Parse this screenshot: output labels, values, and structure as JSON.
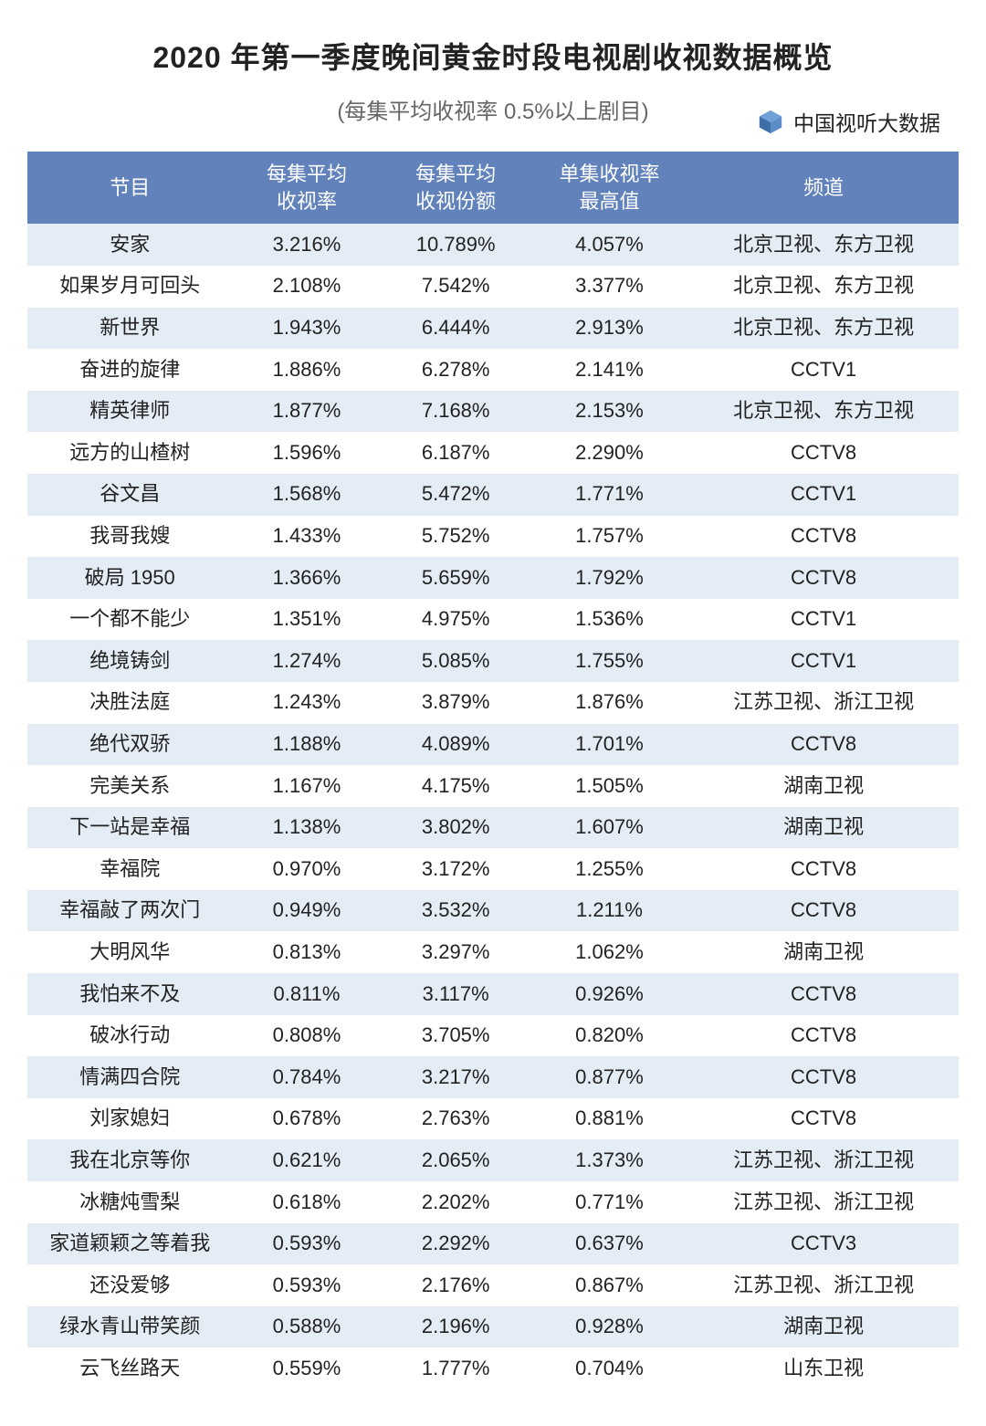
{
  "title": "2020 年第一季度晚间黄金时段电视剧收视数据概览",
  "subtitle": "(每集平均收视率 0.5%以上剧目)",
  "brand": {
    "label": "中国视听大数据",
    "icon_color": "#4a7fc1"
  },
  "table": {
    "type": "table",
    "header_bg": "#6182bb",
    "header_text_color": "#ffffff",
    "row_odd_bg": "#e4ecf5",
    "row_even_bg": "#ffffff",
    "text_color": "#222222",
    "font_size_pt": 16,
    "columns": [
      {
        "key": "show",
        "label_line1": "节目",
        "label_line2": "",
        "width_pct": 22,
        "align": "center"
      },
      {
        "key": "rate",
        "label_line1": "每集平均",
        "label_line2": "收视率",
        "width_pct": 16,
        "align": "center"
      },
      {
        "key": "share",
        "label_line1": "每集平均",
        "label_line2": "收视份额",
        "width_pct": 16,
        "align": "center"
      },
      {
        "key": "peak",
        "label_line1": "单集收视率",
        "label_line2": "最高值",
        "width_pct": 17,
        "align": "center"
      },
      {
        "key": "channel",
        "label_line1": "频道",
        "label_line2": "",
        "width_pct": 29,
        "align": "center"
      }
    ],
    "rows": [
      {
        "show": "安家",
        "rate": "3.216%",
        "share": "10.789%",
        "peak": "4.057%",
        "channel": "北京卫视、东方卫视"
      },
      {
        "show": "如果岁月可回头",
        "rate": "2.108%",
        "share": "7.542%",
        "peak": "3.377%",
        "channel": "北京卫视、东方卫视"
      },
      {
        "show": "新世界",
        "rate": "1.943%",
        "share": "6.444%",
        "peak": "2.913%",
        "channel": "北京卫视、东方卫视"
      },
      {
        "show": "奋进的旋律",
        "rate": "1.886%",
        "share": "6.278%",
        "peak": "2.141%",
        "channel": "CCTV1"
      },
      {
        "show": "精英律师",
        "rate": "1.877%",
        "share": "7.168%",
        "peak": "2.153%",
        "channel": "北京卫视、东方卫视"
      },
      {
        "show": "远方的山楂树",
        "rate": "1.596%",
        "share": "6.187%",
        "peak": "2.290%",
        "channel": "CCTV8"
      },
      {
        "show": "谷文昌",
        "rate": "1.568%",
        "share": "5.472%",
        "peak": "1.771%",
        "channel": "CCTV1"
      },
      {
        "show": "我哥我嫂",
        "rate": "1.433%",
        "share": "5.752%",
        "peak": "1.757%",
        "channel": "CCTV8"
      },
      {
        "show": "破局 1950",
        "rate": "1.366%",
        "share": "5.659%",
        "peak": "1.792%",
        "channel": "CCTV8"
      },
      {
        "show": "一个都不能少",
        "rate": "1.351%",
        "share": "4.975%",
        "peak": "1.536%",
        "channel": "CCTV1"
      },
      {
        "show": "绝境铸剑",
        "rate": "1.274%",
        "share": "5.085%",
        "peak": "1.755%",
        "channel": "CCTV1"
      },
      {
        "show": "决胜法庭",
        "rate": "1.243%",
        "share": "3.879%",
        "peak": "1.876%",
        "channel": "江苏卫视、浙江卫视"
      },
      {
        "show": "绝代双骄",
        "rate": "1.188%",
        "share": "4.089%",
        "peak": "1.701%",
        "channel": "CCTV8"
      },
      {
        "show": "完美关系",
        "rate": "1.167%",
        "share": "4.175%",
        "peak": "1.505%",
        "channel": "湖南卫视"
      },
      {
        "show": "下一站是幸福",
        "rate": "1.138%",
        "share": "3.802%",
        "peak": "1.607%",
        "channel": "湖南卫视"
      },
      {
        "show": "幸福院",
        "rate": "0.970%",
        "share": "3.172%",
        "peak": "1.255%",
        "channel": "CCTV8"
      },
      {
        "show": "幸福敲了两次门",
        "rate": "0.949%",
        "share": "3.532%",
        "peak": "1.211%",
        "channel": "CCTV8"
      },
      {
        "show": "大明风华",
        "rate": "0.813%",
        "share": "3.297%",
        "peak": "1.062%",
        "channel": "湖南卫视"
      },
      {
        "show": "我怕来不及",
        "rate": "0.811%",
        "share": "3.117%",
        "peak": "0.926%",
        "channel": "CCTV8"
      },
      {
        "show": "破冰行动",
        "rate": "0.808%",
        "share": "3.705%",
        "peak": "0.820%",
        "channel": "CCTV8"
      },
      {
        "show": "情满四合院",
        "rate": "0.784%",
        "share": "3.217%",
        "peak": "0.877%",
        "channel": "CCTV8"
      },
      {
        "show": "刘家媳妇",
        "rate": "0.678%",
        "share": "2.763%",
        "peak": "0.881%",
        "channel": "CCTV8"
      },
      {
        "show": "我在北京等你",
        "rate": "0.621%",
        "share": "2.065%",
        "peak": "1.373%",
        "channel": "江苏卫视、浙江卫视"
      },
      {
        "show": "冰糖炖雪梨",
        "rate": "0.618%",
        "share": "2.202%",
        "peak": "0.771%",
        "channel": "江苏卫视、浙江卫视"
      },
      {
        "show": "家道颖颖之等着我",
        "rate": "0.593%",
        "share": "2.292%",
        "peak": "0.637%",
        "channel": "CCTV3"
      },
      {
        "show": "还没爱够",
        "rate": "0.593%",
        "share": "2.176%",
        "peak": "0.867%",
        "channel": "江苏卫视、浙江卫视"
      },
      {
        "show": "绿水青山带笑颜",
        "rate": "0.588%",
        "share": "2.196%",
        "peak": "0.928%",
        "channel": "湖南卫视"
      },
      {
        "show": "云飞丝路天",
        "rate": "0.559%",
        "share": "1.777%",
        "peak": "0.704%",
        "channel": "山东卫视"
      }
    ]
  }
}
